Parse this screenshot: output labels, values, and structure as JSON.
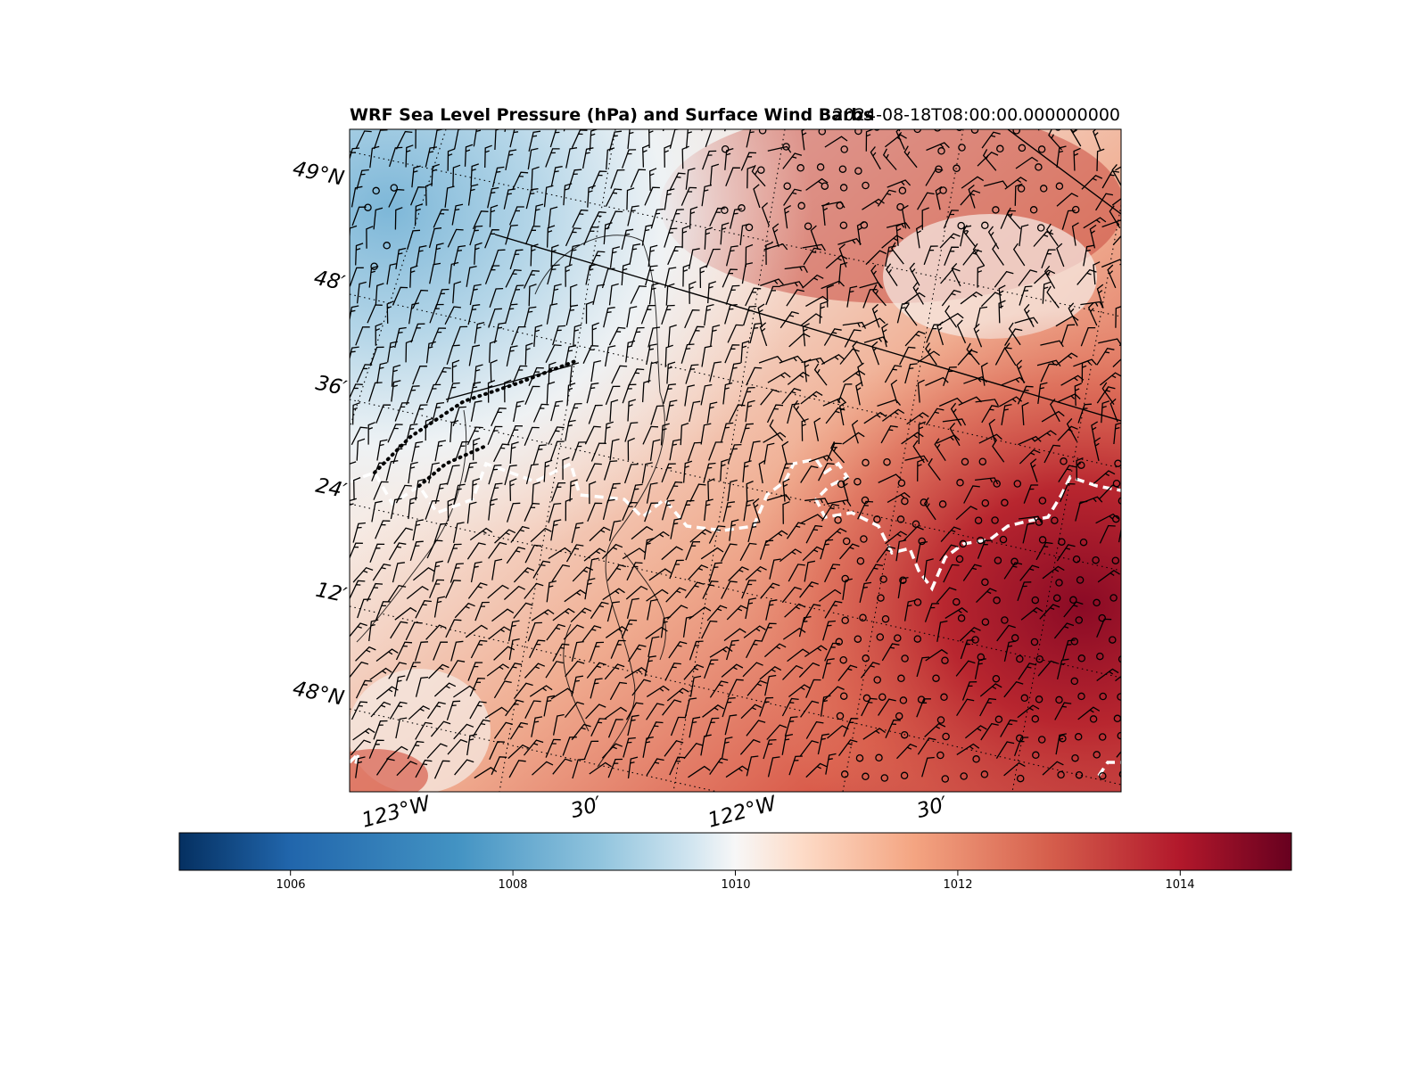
{
  "title_left": "WRF Sea Level Pressure (hPa) and Surface Wind Barbs",
  "title_right": "2024-08-18T08:00:00.000000000",
  "lat_labels": [
    "49°N",
    "48′",
    "36′",
    "24′",
    "12′",
    "48°N"
  ],
  "lon_labels": [
    "123°W",
    "30′",
    "122°W",
    "30′"
  ],
  "colorbar": {
    "colormap": "RdBu_r",
    "range": [
      1005,
      1015
    ],
    "ticks": [
      "1006",
      "1008",
      "1010",
      "1012",
      "1014"
    ]
  },
  "colors": {
    "low": "#053061",
    "mid": "#f7f7f7",
    "high": "#67001f",
    "coast": "#ffffff",
    "border": "#000000"
  }
}
